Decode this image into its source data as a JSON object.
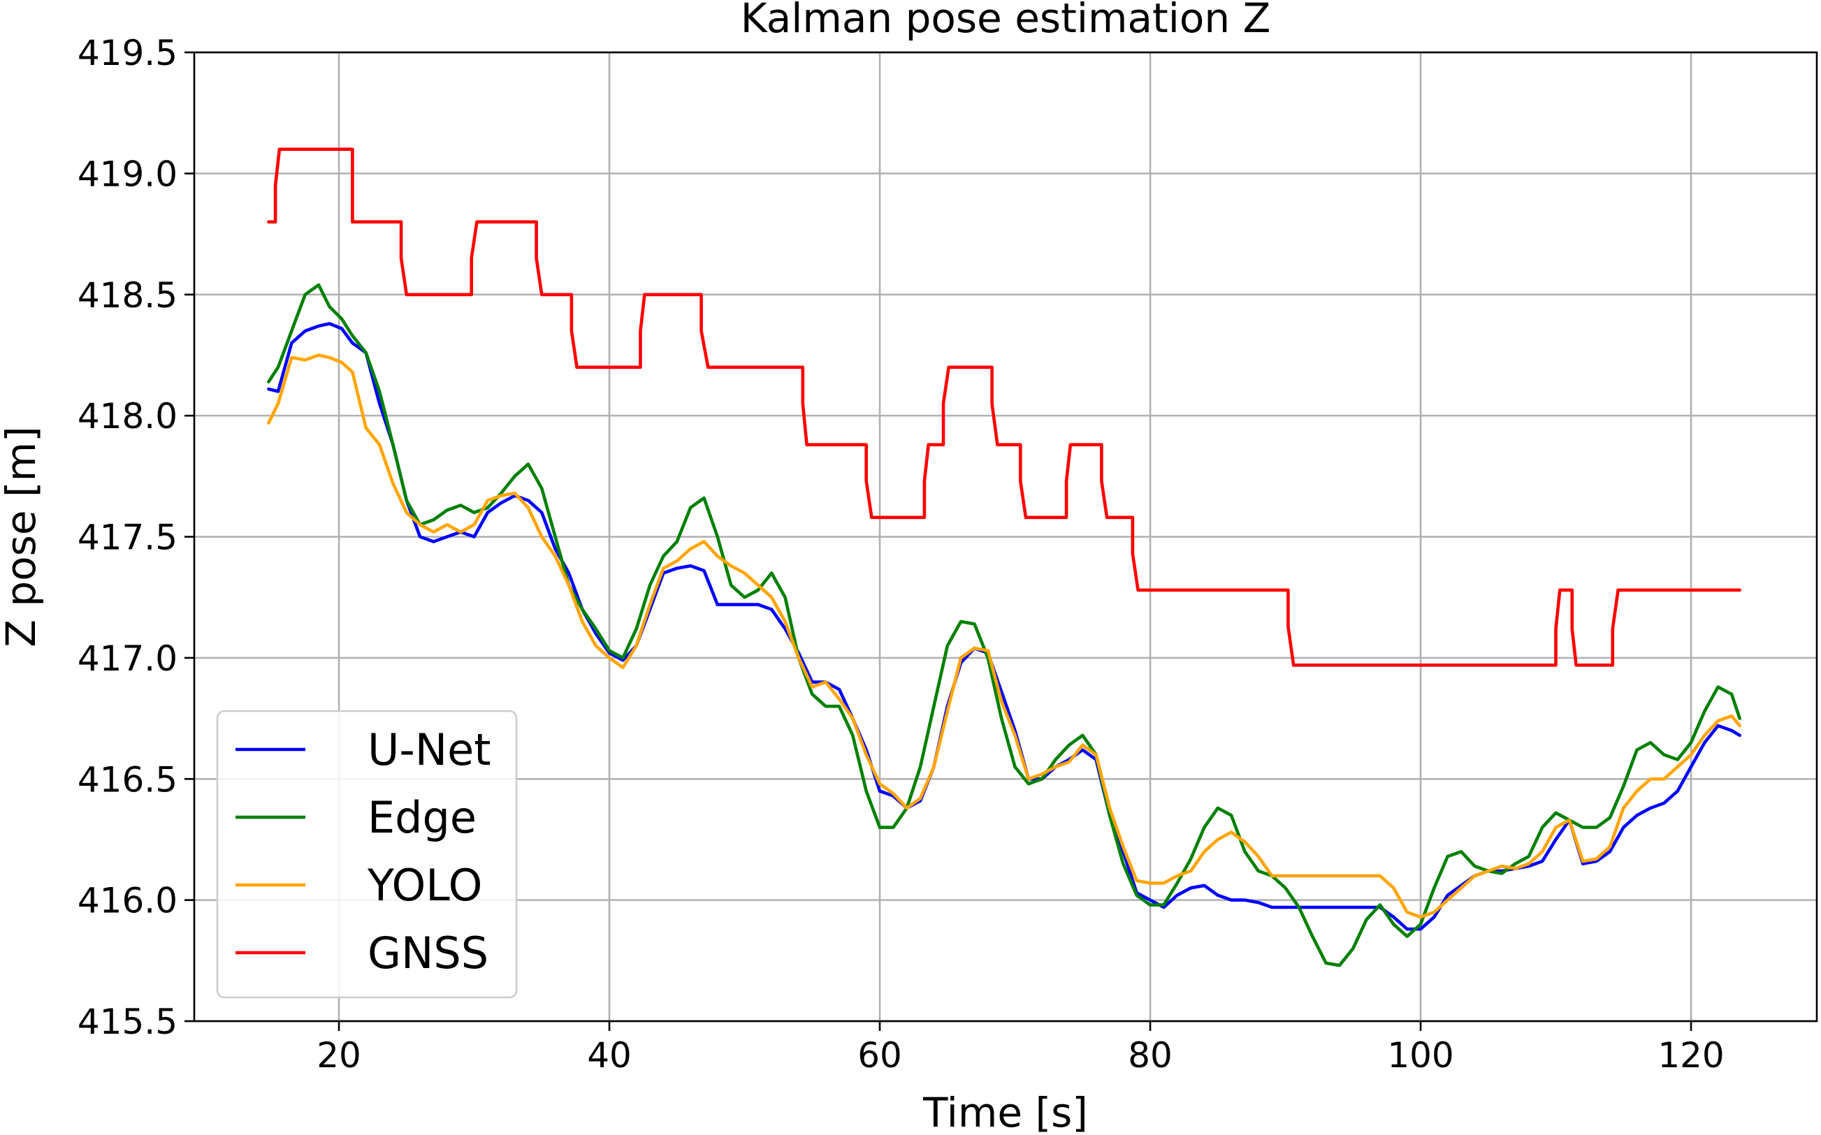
{
  "chart_data": {
    "type": "line",
    "title": "Kalman pose estimation Z",
    "xlabel": "Time [s]",
    "ylabel": "Z pose [m]",
    "xlim": [
      9.3,
      129.3
    ],
    "ylim": [
      415.5,
      419.5
    ],
    "xticks": [
      20,
      40,
      60,
      80,
      100,
      120
    ],
    "yticks": [
      415.5,
      416.0,
      416.5,
      417.0,
      417.5,
      418.0,
      418.5,
      419.0,
      419.5
    ],
    "xtick_labels": [
      "20",
      "40",
      "60",
      "80",
      "100",
      "120"
    ],
    "ytick_labels": [
      "415.5",
      "416.0",
      "416.5",
      "417.0",
      "417.5",
      "418.0",
      "418.5",
      "419.0",
      "419.5"
    ],
    "grid": true,
    "legend_position": "lower-left",
    "series": [
      {
        "name": "U-Net",
        "color": "#0000ff",
        "x": [
          14.8,
          15.5,
          16.5,
          17.5,
          18.5,
          19.3,
          20.2,
          21.0,
          22.0,
          23.0,
          24.0,
          25.0,
          26.0,
          27.0,
          28.0,
          29.0,
          30.0,
          31.0,
          32.0,
          33.0,
          34.0,
          35.0,
          36.0,
          37.0,
          38.0,
          39.0,
          40.0,
          41.0,
          42.0,
          43.0,
          44.0,
          45.0,
          46.0,
          47.0,
          48.0,
          49.0,
          50.0,
          51.0,
          52.0,
          53.0,
          54.0,
          55.0,
          56.0,
          57.0,
          58.0,
          59.0,
          60.0,
          61.0,
          62.0,
          63.0,
          64.0,
          65.0,
          66.0,
          67.0,
          68.0,
          69.0,
          70.0,
          71.0,
          72.0,
          73.0,
          74.0,
          75.0,
          76.0,
          77.0,
          78.0,
          79.0,
          80.0,
          81.0,
          82.0,
          83.0,
          84.0,
          85.0,
          86.0,
          87.0,
          88.0,
          89.0,
          90.0,
          91.0,
          92.0,
          93.0,
          94.0,
          95.0,
          96.0,
          97.0,
          98.0,
          99.0,
          100.0,
          101.0,
          102.0,
          103.0,
          104.0,
          105.0,
          106.0,
          107.0,
          108.0,
          109.0,
          110.0,
          111.0,
          112.0,
          113.0,
          114.0,
          115.0,
          116.0,
          117.0,
          118.0,
          119.0,
          120.0,
          121.0,
          122.0,
          123.0,
          123.6
        ],
        "y": [
          418.11,
          418.1,
          418.3,
          418.35,
          418.37,
          418.38,
          418.36,
          418.3,
          418.26,
          418.05,
          417.88,
          417.65,
          417.5,
          417.48,
          417.5,
          417.52,
          417.5,
          417.6,
          417.64,
          417.67,
          417.65,
          417.6,
          417.45,
          417.35,
          417.2,
          417.1,
          417.02,
          416.99,
          417.05,
          417.2,
          417.35,
          417.37,
          417.38,
          417.36,
          417.22,
          417.22,
          417.22,
          417.22,
          417.2,
          417.12,
          417.02,
          416.9,
          416.9,
          416.87,
          416.75,
          416.62,
          416.45,
          416.43,
          416.38,
          416.41,
          416.55,
          416.8,
          416.98,
          417.04,
          417.02,
          416.86,
          416.7,
          416.5,
          416.5,
          416.55,
          416.58,
          416.62,
          416.58,
          416.35,
          416.2,
          416.03,
          416.0,
          415.97,
          416.02,
          416.05,
          416.06,
          416.02,
          416.0,
          416.0,
          415.99,
          415.97,
          415.97,
          415.97,
          415.97,
          415.97,
          415.97,
          415.97,
          415.97,
          415.97,
          415.93,
          415.88,
          415.88,
          415.93,
          416.02,
          416.06,
          416.1,
          416.12,
          416.12,
          416.13,
          416.14,
          416.16,
          416.25,
          416.33,
          416.15,
          416.16,
          416.2,
          416.3,
          416.35,
          416.38,
          416.4,
          416.45,
          416.55,
          416.65,
          416.72,
          416.7,
          416.68
        ]
      },
      {
        "name": "Edge",
        "color": "#008000",
        "x": [
          14.8,
          15.5,
          16.5,
          17.5,
          18.5,
          19.3,
          20.2,
          21.0,
          22.0,
          23.0,
          24.0,
          25.0,
          26.0,
          27.0,
          28.0,
          29.0,
          30.0,
          31.0,
          32.0,
          33.0,
          34.0,
          35.0,
          36.0,
          37.0,
          38.0,
          39.0,
          40.0,
          41.0,
          42.0,
          43.0,
          44.0,
          45.0,
          46.0,
          47.0,
          48.0,
          49.0,
          50.0,
          51.0,
          52.0,
          53.0,
          54.0,
          55.0,
          56.0,
          57.0,
          58.0,
          59.0,
          60.0,
          61.0,
          62.0,
          63.0,
          64.0,
          65.0,
          66.0,
          67.0,
          68.0,
          69.0,
          70.0,
          71.0,
          72.0,
          73.0,
          74.0,
          75.0,
          76.0,
          77.0,
          78.0,
          79.0,
          80.0,
          81.0,
          82.0,
          83.0,
          84.0,
          85.0,
          86.0,
          87.0,
          88.0,
          89.0,
          90.0,
          91.0,
          92.0,
          93.0,
          94.0,
          95.0,
          96.0,
          97.0,
          98.0,
          99.0,
          100.0,
          101.0,
          102.0,
          103.0,
          104.0,
          105.0,
          106.0,
          107.0,
          108.0,
          109.0,
          110.0,
          111.0,
          112.0,
          113.0,
          114.0,
          115.0,
          116.0,
          117.0,
          118.0,
          119.0,
          120.0,
          121.0,
          122.0,
          123.0,
          123.6
        ],
        "y": [
          418.14,
          418.2,
          418.35,
          418.5,
          418.54,
          418.45,
          418.4,
          418.33,
          418.26,
          418.1,
          417.88,
          417.65,
          417.55,
          417.57,
          417.61,
          417.63,
          417.6,
          417.62,
          417.68,
          417.75,
          417.8,
          417.7,
          417.5,
          417.3,
          417.2,
          417.12,
          417.03,
          417.0,
          417.12,
          417.3,
          417.42,
          417.48,
          417.62,
          417.66,
          417.5,
          417.3,
          417.25,
          417.28,
          417.35,
          417.25,
          417.0,
          416.85,
          416.8,
          416.8,
          416.68,
          416.45,
          416.3,
          416.3,
          416.38,
          416.55,
          416.8,
          417.05,
          417.15,
          417.14,
          417.0,
          416.75,
          416.55,
          416.48,
          416.5,
          416.58,
          416.64,
          416.68,
          416.6,
          416.35,
          416.15,
          416.02,
          415.98,
          415.98,
          416.07,
          416.17,
          416.3,
          416.38,
          416.35,
          416.2,
          416.12,
          416.1,
          416.05,
          415.97,
          415.85,
          415.74,
          415.73,
          415.8,
          415.92,
          415.98,
          415.9,
          415.85,
          415.9,
          416.05,
          416.18,
          416.2,
          416.14,
          416.12,
          416.11,
          416.15,
          416.18,
          416.3,
          416.36,
          416.33,
          416.3,
          416.3,
          416.34,
          416.47,
          416.62,
          416.65,
          416.6,
          416.58,
          416.65,
          416.78,
          416.88,
          416.85,
          416.75
        ]
      },
      {
        "name": "YOLO",
        "color": "#ffa500",
        "x": [
          14.8,
          15.5,
          16.5,
          17.5,
          18.5,
          19.3,
          20.2,
          21.0,
          22.0,
          23.0,
          24.0,
          25.0,
          26.0,
          27.0,
          28.0,
          29.0,
          30.0,
          31.0,
          32.0,
          33.0,
          34.0,
          35.0,
          36.0,
          37.0,
          38.0,
          39.0,
          40.0,
          41.0,
          42.0,
          43.0,
          44.0,
          45.0,
          46.0,
          47.0,
          48.0,
          49.0,
          50.0,
          51.0,
          52.0,
          53.0,
          54.0,
          55.0,
          56.0,
          57.0,
          58.0,
          59.0,
          60.0,
          61.0,
          62.0,
          63.0,
          64.0,
          65.0,
          66.0,
          67.0,
          68.0,
          69.0,
          70.0,
          71.0,
          72.0,
          73.0,
          74.0,
          75.0,
          76.0,
          77.0,
          78.0,
          79.0,
          80.0,
          81.0,
          82.0,
          83.0,
          84.0,
          85.0,
          86.0,
          87.0,
          88.0,
          89.0,
          90.0,
          91.0,
          92.0,
          93.0,
          94.0,
          95.0,
          96.0,
          97.0,
          98.0,
          99.0,
          100.0,
          101.0,
          102.0,
          103.0,
          104.0,
          105.0,
          106.0,
          107.0,
          108.0,
          109.0,
          110.0,
          111.0,
          112.0,
          113.0,
          114.0,
          115.0,
          116.0,
          117.0,
          118.0,
          119.0,
          120.0,
          121.0,
          122.0,
          123.0,
          123.6
        ],
        "y": [
          417.97,
          418.05,
          418.24,
          418.23,
          418.25,
          418.24,
          418.22,
          418.18,
          417.95,
          417.88,
          417.72,
          417.6,
          417.55,
          417.52,
          417.55,
          417.52,
          417.55,
          417.65,
          417.67,
          417.68,
          417.62,
          417.5,
          417.42,
          417.3,
          417.15,
          417.05,
          417.0,
          416.96,
          417.05,
          417.22,
          417.37,
          417.4,
          417.45,
          417.48,
          417.42,
          417.38,
          417.35,
          417.3,
          417.25,
          417.15,
          417.0,
          416.88,
          416.9,
          416.83,
          416.75,
          416.6,
          416.48,
          416.44,
          416.38,
          416.42,
          416.55,
          416.78,
          417.0,
          417.04,
          417.03,
          416.82,
          416.68,
          416.5,
          416.52,
          416.55,
          416.57,
          416.64,
          416.6,
          416.38,
          416.22,
          416.08,
          416.07,
          416.07,
          416.1,
          416.12,
          416.2,
          416.25,
          416.28,
          416.24,
          416.18,
          416.1,
          416.1,
          416.1,
          416.1,
          416.1,
          416.1,
          416.1,
          416.1,
          416.1,
          416.05,
          415.95,
          415.93,
          415.95,
          416.0,
          416.05,
          416.1,
          416.12,
          416.14,
          416.13,
          416.15,
          416.2,
          416.3,
          416.33,
          416.16,
          416.17,
          416.22,
          416.38,
          416.45,
          416.5,
          416.5,
          416.55,
          416.6,
          416.68,
          416.74,
          416.76,
          416.72
        ]
      },
      {
        "name": "GNSS",
        "color": "#ff0000",
        "x": [
          14.8,
          15.3,
          15.3,
          15.6,
          15.6,
          21.0,
          21.0,
          24.6,
          24.6,
          25.0,
          25.0,
          29.8,
          29.8,
          30.2,
          30.2,
          34.6,
          34.6,
          35.0,
          35.0,
          37.2,
          37.2,
          37.6,
          37.6,
          42.3,
          42.3,
          42.6,
          42.6,
          46.8,
          46.8,
          47.3,
          47.3,
          54.3,
          54.3,
          54.6,
          54.6,
          59.0,
          59.0,
          59.4,
          59.4,
          63.3,
          63.3,
          63.6,
          63.6,
          64.7,
          64.7,
          65.1,
          65.1,
          68.3,
          68.3,
          68.7,
          68.7,
          70.4,
          70.4,
          70.8,
          70.8,
          73.8,
          73.8,
          74.1,
          74.1,
          76.4,
          76.4,
          76.8,
          76.8,
          78.7,
          78.7,
          79.1,
          79.1,
          90.2,
          90.2,
          90.6,
          90.6,
          110.0,
          110.0,
          110.3,
          110.3,
          111.2,
          111.2,
          111.5,
          111.5,
          114.2,
          114.2,
          114.6,
          114.6,
          123.6
        ],
        "y": [
          418.8,
          418.8,
          418.95,
          419.1,
          419.1,
          419.1,
          418.8,
          418.8,
          418.65,
          418.5,
          418.5,
          418.5,
          418.65,
          418.8,
          418.8,
          418.8,
          418.65,
          418.5,
          418.5,
          418.5,
          418.35,
          418.2,
          418.2,
          418.2,
          418.35,
          418.5,
          418.5,
          418.5,
          418.35,
          418.2,
          418.2,
          418.2,
          418.05,
          417.88,
          417.88,
          417.88,
          417.73,
          417.58,
          417.58,
          417.58,
          417.73,
          417.88,
          417.88,
          417.88,
          418.05,
          418.2,
          418.2,
          418.2,
          418.05,
          417.88,
          417.88,
          417.88,
          417.73,
          417.58,
          417.58,
          417.58,
          417.73,
          417.88,
          417.88,
          417.88,
          417.73,
          417.58,
          417.58,
          417.58,
          417.43,
          417.28,
          417.28,
          417.28,
          417.13,
          416.97,
          416.97,
          416.97,
          417.12,
          417.28,
          417.28,
          417.28,
          417.12,
          416.97,
          416.97,
          416.97,
          417.12,
          417.28,
          417.28,
          417.28
        ]
      }
    ]
  }
}
